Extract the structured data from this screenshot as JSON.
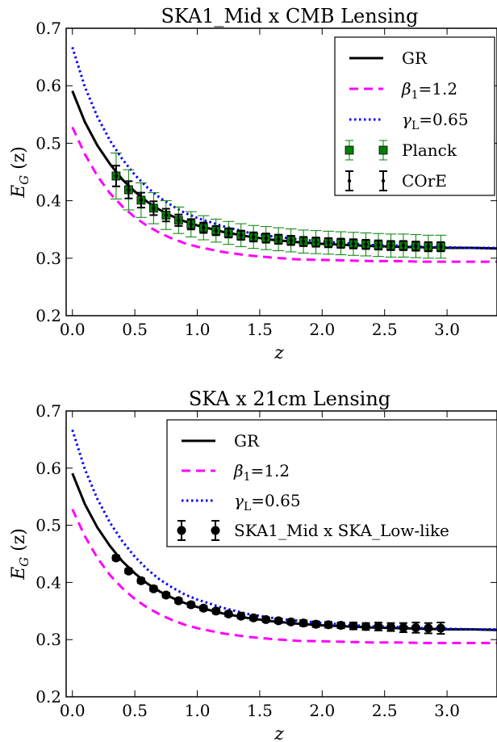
{
  "chart_data": [
    {
      "type": "line",
      "title": "SKA1_Mid x CMB Lensing",
      "xlabel": "z",
      "ylabel_main": "E",
      "ylabel_sub": "G",
      "ylabel_tail": "(z)",
      "xlim": [
        -0.05,
        3.4
      ],
      "ylim": [
        0.2,
        0.7
      ],
      "xticks": [
        "0.0",
        "0.5",
        "1.0",
        "1.5",
        "2.0",
        "2.5",
        "3.0"
      ],
      "yticks": [
        "0.2",
        "0.3",
        "0.4",
        "0.5",
        "0.6",
        "0.7"
      ],
      "grid": false,
      "legend_position": "top-right",
      "series": [
        {
          "name": "GR",
          "kind": "line",
          "style": "solid",
          "color": "#000000",
          "x": [
            0.0,
            0.1,
            0.2,
            0.3,
            0.4,
            0.5,
            0.6,
            0.7,
            0.8,
            0.9,
            1.0,
            1.2,
            1.4,
            1.6,
            1.8,
            2.0,
            2.2,
            2.4,
            2.6,
            2.8,
            3.0,
            3.2,
            3.4
          ],
          "y": [
            0.591,
            0.537,
            0.496,
            0.464,
            0.437,
            0.416,
            0.398,
            0.384,
            0.373,
            0.364,
            0.357,
            0.346,
            0.338,
            0.332,
            0.328,
            0.325,
            0.323,
            0.321,
            0.32,
            0.319,
            0.318,
            0.318,
            0.317
          ]
        },
        {
          "name": "β",
          "name_sub": "1",
          "name_tail": "=1.2",
          "kind": "line",
          "style": "dashed",
          "color": "#ff00ff",
          "x": [
            0.0,
            0.1,
            0.2,
            0.3,
            0.4,
            0.5,
            0.6,
            0.7,
            0.8,
            0.9,
            1.0,
            1.2,
            1.4,
            1.6,
            1.8,
            2.0,
            2.2,
            2.4,
            2.6,
            2.8,
            3.0,
            3.2,
            3.4
          ],
          "y": [
            0.528,
            0.481,
            0.443,
            0.413,
            0.39,
            0.371,
            0.356,
            0.344,
            0.334,
            0.326,
            0.32,
            0.311,
            0.305,
            0.301,
            0.298,
            0.297,
            0.296,
            0.295,
            0.295,
            0.294,
            0.294,
            0.294,
            0.294
          ]
        },
        {
          "name": "γ",
          "name_sub": "L",
          "name_tail": "=0.65",
          "kind": "line",
          "style": "dotted",
          "color": "#0000ff",
          "x": [
            0.0,
            0.1,
            0.2,
            0.3,
            0.4,
            0.5,
            0.6,
            0.7,
            0.8,
            0.9,
            1.0,
            1.2,
            1.4,
            1.6,
            1.8,
            2.0,
            2.2,
            2.4,
            2.6,
            2.8,
            3.0,
            3.2,
            3.4
          ],
          "y": [
            0.667,
            0.598,
            0.546,
            0.505,
            0.472,
            0.445,
            0.423,
            0.405,
            0.391,
            0.379,
            0.37,
            0.356,
            0.345,
            0.338,
            0.333,
            0.329,
            0.326,
            0.323,
            0.322,
            0.32,
            0.319,
            0.318,
            0.318
          ]
        },
        {
          "name": "Planck",
          "kind": "errorbar",
          "marker": "square",
          "color": "#008000",
          "edge": "#000000",
          "x": [
            0.35,
            0.45,
            0.55,
            0.65,
            0.75,
            0.85,
            0.95,
            1.05,
            1.15,
            1.25,
            1.35,
            1.45,
            1.55,
            1.65,
            1.75,
            1.85,
            1.95,
            2.05,
            2.15,
            2.25,
            2.35,
            2.45,
            2.55,
            2.65,
            2.75,
            2.85,
            2.95
          ],
          "y": [
            0.443,
            0.419,
            0.401,
            0.387,
            0.375,
            0.366,
            0.359,
            0.353,
            0.348,
            0.344,
            0.34,
            0.337,
            0.335,
            0.333,
            0.331,
            0.329,
            0.328,
            0.327,
            0.326,
            0.325,
            0.324,
            0.323,
            0.322,
            0.322,
            0.321,
            0.32,
            0.32
          ],
          "err": [
            0.04,
            0.035,
            0.03,
            0.027,
            0.025,
            0.023,
            0.022,
            0.021,
            0.02,
            0.02,
            0.02,
            0.02,
            0.02,
            0.02,
            0.02,
            0.02,
            0.02,
            0.02,
            0.02,
            0.02,
            0.02,
            0.02,
            0.02,
            0.02,
            0.02,
            0.02,
            0.02
          ]
        },
        {
          "name": "COrE",
          "kind": "errorbar",
          "marker": "dot",
          "color": "#000000",
          "x": [
            0.35,
            0.45,
            0.55,
            0.65,
            0.75,
            0.85,
            0.95,
            1.05,
            1.15,
            1.25,
            1.35,
            1.45,
            1.55,
            1.65,
            1.75,
            1.85,
            1.95,
            2.05,
            2.15,
            2.25,
            2.35,
            2.45,
            2.55,
            2.65,
            2.75,
            2.85,
            2.95
          ],
          "y": [
            0.443,
            0.419,
            0.401,
            0.387,
            0.375,
            0.366,
            0.359,
            0.353,
            0.348,
            0.344,
            0.34,
            0.337,
            0.335,
            0.333,
            0.331,
            0.329,
            0.328,
            0.327,
            0.326,
            0.325,
            0.324,
            0.323,
            0.322,
            0.322,
            0.321,
            0.32,
            0.32
          ],
          "err": [
            0.018,
            0.015,
            0.013,
            0.012,
            0.011,
            0.01,
            0.009,
            0.009,
            0.008,
            0.008,
            0.008,
            0.008,
            0.008,
            0.008,
            0.008,
            0.008,
            0.008,
            0.008,
            0.008,
            0.008,
            0.008,
            0.008,
            0.008,
            0.008,
            0.008,
            0.008,
            0.008
          ]
        }
      ]
    },
    {
      "type": "line",
      "title": "SKA x 21cm Lensing",
      "xlabel": "z",
      "ylabel_main": "E",
      "ylabel_sub": "G",
      "ylabel_tail": "(z)",
      "xlim": [
        -0.05,
        3.4
      ],
      "ylim": [
        0.2,
        0.7
      ],
      "xticks": [
        "0.0",
        "0.5",
        "1.0",
        "1.5",
        "2.0",
        "2.5",
        "3.0"
      ],
      "yticks": [
        "0.2",
        "0.3",
        "0.4",
        "0.5",
        "0.6",
        "0.7"
      ],
      "grid": false,
      "legend_position": "top-right",
      "series": [
        {
          "name": "GR",
          "kind": "line",
          "style": "solid",
          "color": "#000000",
          "x": [
            0.0,
            0.1,
            0.2,
            0.3,
            0.4,
            0.5,
            0.6,
            0.7,
            0.8,
            0.9,
            1.0,
            1.2,
            1.4,
            1.6,
            1.8,
            2.0,
            2.2,
            2.4,
            2.6,
            2.8,
            3.0,
            3.2,
            3.4
          ],
          "y": [
            0.591,
            0.537,
            0.496,
            0.464,
            0.437,
            0.416,
            0.398,
            0.384,
            0.373,
            0.364,
            0.357,
            0.346,
            0.338,
            0.332,
            0.328,
            0.325,
            0.323,
            0.321,
            0.32,
            0.319,
            0.318,
            0.318,
            0.317
          ]
        },
        {
          "name": "β",
          "name_sub": "1",
          "name_tail": "=1.2",
          "kind": "line",
          "style": "dashed",
          "color": "#ff00ff",
          "x": [
            0.0,
            0.1,
            0.2,
            0.3,
            0.4,
            0.5,
            0.6,
            0.7,
            0.8,
            0.9,
            1.0,
            1.2,
            1.4,
            1.6,
            1.8,
            2.0,
            2.2,
            2.4,
            2.6,
            2.8,
            3.0,
            3.2,
            3.4
          ],
          "y": [
            0.528,
            0.481,
            0.443,
            0.413,
            0.39,
            0.371,
            0.356,
            0.344,
            0.334,
            0.326,
            0.32,
            0.311,
            0.305,
            0.301,
            0.298,
            0.297,
            0.296,
            0.295,
            0.295,
            0.294,
            0.294,
            0.294,
            0.294
          ]
        },
        {
          "name": "γ",
          "name_sub": "L",
          "name_tail": "=0.65",
          "kind": "line",
          "style": "dotted",
          "color": "#0000ff",
          "x": [
            0.0,
            0.1,
            0.2,
            0.3,
            0.4,
            0.5,
            0.6,
            0.7,
            0.8,
            0.9,
            1.0,
            1.2,
            1.4,
            1.6,
            1.8,
            2.0,
            2.2,
            2.4,
            2.6,
            2.8,
            3.0,
            3.2,
            3.4
          ],
          "y": [
            0.667,
            0.598,
            0.546,
            0.505,
            0.472,
            0.445,
            0.423,
            0.405,
            0.391,
            0.379,
            0.37,
            0.356,
            0.345,
            0.338,
            0.333,
            0.329,
            0.326,
            0.323,
            0.322,
            0.32,
            0.319,
            0.318,
            0.318
          ]
        },
        {
          "name": "SKA1_Mid x SKA_Low-like",
          "kind": "errorbar",
          "marker": "circle",
          "color": "#000000",
          "x": [
            0.35,
            0.45,
            0.55,
            0.65,
            0.75,
            0.85,
            0.95,
            1.05,
            1.15,
            1.25,
            1.35,
            1.45,
            1.55,
            1.65,
            1.75,
            1.85,
            1.95,
            2.05,
            2.15,
            2.25,
            2.35,
            2.45,
            2.55,
            2.65,
            2.75,
            2.85,
            2.95
          ],
          "y": [
            0.443,
            0.42,
            0.403,
            0.389,
            0.378,
            0.368,
            0.361,
            0.355,
            0.35,
            0.345,
            0.341,
            0.338,
            0.335,
            0.333,
            0.331,
            0.329,
            0.327,
            0.326,
            0.325,
            0.324,
            0.323,
            0.323,
            0.322,
            0.321,
            0.321,
            0.32,
            0.32
          ],
          "err": [
            0.004,
            0.004,
            0.004,
            0.004,
            0.004,
            0.004,
            0.004,
            0.004,
            0.004,
            0.004,
            0.004,
            0.004,
            0.004,
            0.004,
            0.004,
            0.005,
            0.005,
            0.005,
            0.005,
            0.006,
            0.006,
            0.007,
            0.007,
            0.008,
            0.009,
            0.009,
            0.01
          ]
        }
      ]
    }
  ]
}
